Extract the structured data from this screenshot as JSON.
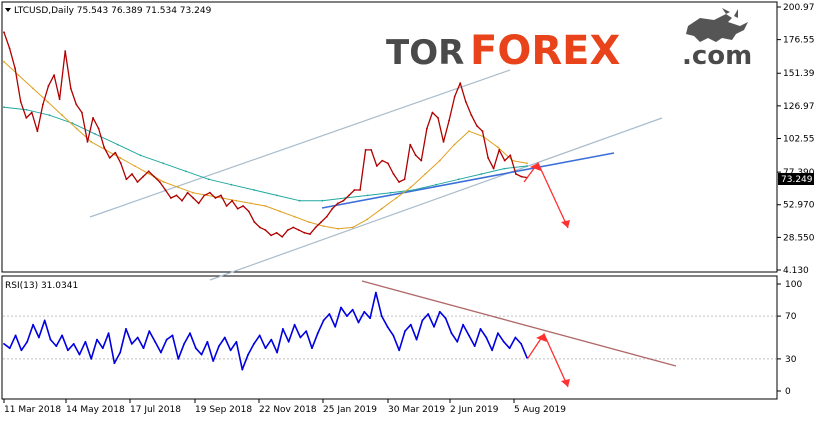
{
  "header": {
    "symbol_line": "LTCUSD,Daily  75.543 76.389 71.534 73.249"
  },
  "logo": {
    "part1": "TOR",
    "part2": "FOREX",
    "part3": ".com",
    "color_dark": "#4a4a4a",
    "color_accent": "#e8431a"
  },
  "chart_data": [
    {
      "type": "line",
      "title": "LTCUSD,Daily",
      "price_axis_ticks": [
        "200.970",
        "176.550",
        "151.390",
        "126.970",
        "102.550",
        "77.390",
        "52.970",
        "28.550",
        "4.130"
      ],
      "price_ylim": [
        4.13,
        200.97
      ],
      "current_price_label": "73.249",
      "ohlc": {
        "open": 75.543,
        "high": 76.389,
        "low": 71.534,
        "close": 73.249
      },
      "x_labels": [
        "11 Mar 2018",
        "14 May 2018",
        "17 Jul 2018",
        "19 Sep 2018",
        "22 Nov 2018",
        "25 Jan 2019",
        "30 Mar 2019",
        "2 Jun 2019",
        "5 Aug 2019"
      ],
      "series": [
        {
          "color": "#b00000",
          "values": [
            182,
            170,
            155,
            130,
            118,
            122,
            108,
            128,
            142,
            150,
            132,
            168,
            140,
            128,
            122,
            100,
            118,
            110,
            96,
            88,
            92,
            84,
            72,
            76,
            70,
            74,
            78,
            74,
            70,
            64,
            58,
            60,
            56,
            62,
            58,
            54,
            60,
            62,
            58,
            60,
            52,
            56,
            50,
            52,
            48,
            40,
            36,
            34,
            30,
            32,
            29,
            34,
            36,
            34,
            32,
            31,
            36,
            40,
            44,
            50,
            54,
            56,
            60,
            64,
            64,
            94,
            94,
            82,
            86,
            84,
            76,
            70,
            72,
            98,
            90,
            86,
            110,
            122,
            118,
            100,
            116,
            134,
            144,
            130,
            120,
            112,
            108,
            88,
            80,
            94,
            86,
            90,
            76,
            74,
            73.249
          ]
        },
        {
          "color": "#e0a020",
          "values": [
            160,
            150,
            140,
            130,
            120,
            110,
            100,
            94,
            88,
            82,
            76,
            70,
            66,
            62,
            60,
            58,
            56,
            54,
            52,
            48,
            44,
            40,
            37,
            35,
            36,
            42,
            50,
            58,
            66,
            76,
            86,
            98,
            108,
            104,
            96,
            86,
            84
          ]
        },
        {
          "color": "#20a8a0",
          "values": [
            126,
            124,
            120,
            114,
            106,
            98,
            90,
            84,
            78,
            72,
            68,
            64,
            60,
            56,
            56,
            58,
            60,
            62,
            64,
            68,
            72,
            76,
            80,
            82
          ]
        }
      ]
    },
    {
      "type": "line",
      "title": "RSI(13) 31.0341",
      "ylim": [
        0,
        100
      ],
      "y_ticks": [
        "100",
        "70",
        "30",
        "0"
      ],
      "x_labels": [
        "11 Mar 2018",
        "14 May 2018",
        "17 Jul 2018",
        "19 Sep 2018",
        "22 Nov 2018",
        "25 Jan 2019",
        "30 Mar 2019",
        "2 Jun 2019",
        "5 Aug 2019"
      ],
      "series": [
        {
          "color": "#0000e0",
          "values": [
            44,
            40,
            52,
            38,
            46,
            62,
            50,
            66,
            48,
            42,
            52,
            38,
            44,
            34,
            46,
            30,
            48,
            40,
            54,
            26,
            36,
            58,
            44,
            50,
            40,
            56,
            46,
            36,
            48,
            52,
            30,
            44,
            54,
            40,
            34,
            46,
            28,
            42,
            50,
            38,
            46,
            20,
            34,
            44,
            52,
            40,
            48,
            36,
            58,
            46,
            62,
            50,
            56,
            40,
            54,
            66,
            72,
            60,
            78,
            70,
            76,
            64,
            74,
            68,
            92,
            70,
            60,
            52,
            38,
            56,
            62,
            48,
            66,
            72,
            60,
            74,
            68,
            54,
            46,
            62,
            52,
            42,
            58,
            50,
            38,
            54,
            46,
            40,
            50,
            44,
            31.0341
          ]
        }
      ]
    }
  ]
}
